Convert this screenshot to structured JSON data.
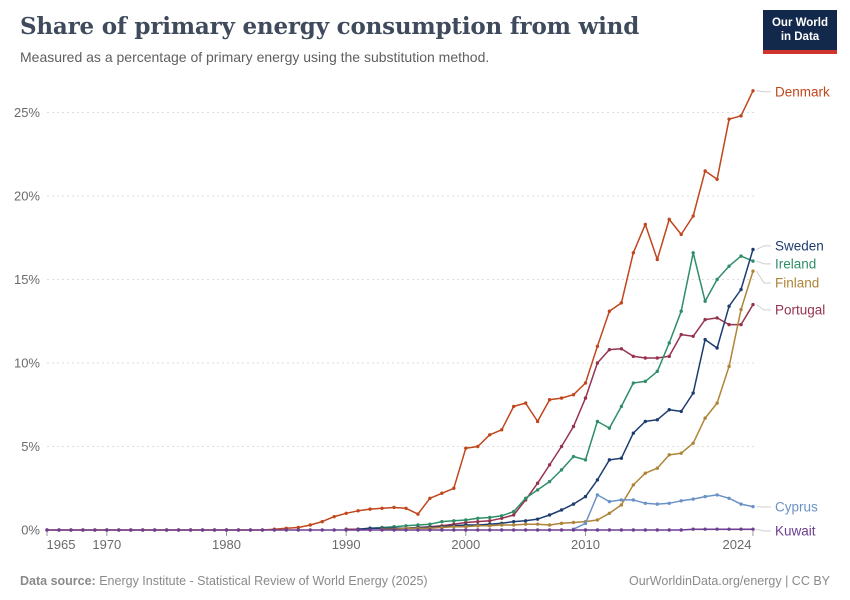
{
  "header": {
    "title": "Share of primary energy consumption from wind",
    "subtitle": "Measured as a percentage of primary energy using the substitution method.",
    "logo_line1": "Our World",
    "logo_line2": "in Data"
  },
  "footer": {
    "source_label": "Data source:",
    "source_text": " Energy Institute - Statistical Review of World Energy (2025)",
    "site": "OurWorldinData.org/energy",
    "separator": " | ",
    "license": "CC BY"
  },
  "chart_data": {
    "type": "line",
    "title": "Share of primary energy consumption from wind",
    "xlabel": "",
    "ylabel": "",
    "ylim": [
      0,
      26.5
    ],
    "xlim": [
      1965,
      2024
    ],
    "grid": "horizontal-dashed",
    "legend_position": "labels-right-of-lines",
    "y_ticks": [
      {
        "value": 0,
        "label": "0%"
      },
      {
        "value": 5,
        "label": "5%"
      },
      {
        "value": 10,
        "label": "10%"
      },
      {
        "value": 15,
        "label": "15%"
      },
      {
        "value": 20,
        "label": "20%"
      },
      {
        "value": 25,
        "label": "25%"
      }
    ],
    "x_ticks": [
      {
        "year": 1965,
        "label": "1965"
      },
      {
        "year": 1970,
        "label": "1970"
      },
      {
        "year": 1980,
        "label": "1980"
      },
      {
        "year": 1990,
        "label": "1990"
      },
      {
        "year": 2000,
        "label": "2000"
      },
      {
        "year": 2010,
        "label": "2010"
      },
      {
        "year": 2024,
        "label": "2024"
      }
    ],
    "series": [
      {
        "name": "Denmark",
        "color": "#c0461d",
        "start_year": 1965,
        "values": [
          0,
          0,
          0,
          0,
          0,
          0,
          0,
          0,
          0,
          0,
          0,
          0,
          0,
          0,
          0,
          0,
          0,
          0,
          0,
          0.05,
          0.1,
          0.15,
          0.3,
          0.5,
          0.8,
          1.0,
          1.15,
          1.25,
          1.3,
          1.35,
          1.3,
          0.95,
          1.9,
          2.2,
          2.5,
          4.9,
          5.0,
          5.7,
          6.0,
          7.4,
          7.6,
          6.5,
          7.8,
          7.9,
          8.1,
          8.8,
          11.0,
          13.1,
          13.6,
          16.6,
          18.3,
          16.2,
          18.6,
          17.7,
          18.8,
          21.5,
          21.0,
          24.6,
          24.8,
          26.3
        ]
      },
      {
        "name": "Sweden",
        "color": "#1d3d70",
        "start_year": 1991,
        "values": [
          0.05,
          0.1,
          0.1,
          0.1,
          0.1,
          0.15,
          0.15,
          0.2,
          0.25,
          0.3,
          0.3,
          0.35,
          0.4,
          0.5,
          0.55,
          0.65,
          0.9,
          1.2,
          1.55,
          2.0,
          3.0,
          4.2,
          4.3,
          5.8,
          6.5,
          6.6,
          7.2,
          7.1,
          8.2,
          11.4,
          10.9,
          13.4,
          14.4,
          16.8
        ]
      },
      {
        "name": "Ireland",
        "color": "#2f8e68",
        "start_year": 1992,
        "values": [
          0.1,
          0.15,
          0.2,
          0.25,
          0.3,
          0.35,
          0.5,
          0.55,
          0.6,
          0.7,
          0.75,
          0.85,
          1.1,
          1.9,
          2.4,
          2.9,
          3.6,
          4.4,
          4.2,
          6.5,
          6.1,
          7.4,
          8.8,
          8.9,
          9.5,
          11.2,
          13.1,
          16.6,
          13.7,
          15.0,
          15.8,
          16.4,
          16.1
        ]
      },
      {
        "name": "Finland",
        "color": "#ae8538",
        "start_year": 1993,
        "values": [
          0.05,
          0.05,
          0.1,
          0.1,
          0.1,
          0.15,
          0.2,
          0.2,
          0.25,
          0.25,
          0.3,
          0.3,
          0.35,
          0.35,
          0.3,
          0.4,
          0.45,
          0.5,
          0.6,
          1.0,
          1.5,
          2.7,
          3.4,
          3.7,
          4.5,
          4.6,
          5.2,
          6.7,
          7.6,
          9.8,
          13.2,
          15.5
        ]
      },
      {
        "name": "Portugal",
        "color": "#95334f",
        "start_year": 1990,
        "values": [
          0.05,
          0.05,
          0.1,
          0.1,
          0.1,
          0.1,
          0.15,
          0.2,
          0.25,
          0.35,
          0.45,
          0.5,
          0.55,
          0.7,
          0.9,
          1.8,
          2.8,
          3.9,
          5.0,
          6.2,
          7.9,
          10.0,
          10.8,
          10.85,
          10.4,
          10.3,
          10.3,
          10.4,
          11.7,
          11.6,
          12.6,
          12.7,
          12.3,
          12.3,
          13.5
        ]
      },
      {
        "name": "Cyprus",
        "color": "#6b92c6",
        "start_year": 2009,
        "values": [
          0.05,
          0.4,
          2.1,
          1.7,
          1.8,
          1.8,
          1.6,
          1.55,
          1.6,
          1.75,
          1.85,
          2.0,
          2.1,
          1.9,
          1.55,
          1.4
        ]
      },
      {
        "name": "Kuwait",
        "color": "#6d3e91",
        "start_year": 1965,
        "values": [
          0,
          0,
          0,
          0,
          0,
          0,
          0,
          0,
          0,
          0,
          0,
          0,
          0,
          0,
          0,
          0,
          0,
          0,
          0,
          0,
          0,
          0,
          0,
          0,
          0,
          0,
          0,
          0,
          0,
          0,
          0,
          0,
          0,
          0,
          0,
          0,
          0,
          0,
          0,
          0,
          0,
          0,
          0,
          0,
          0,
          0,
          0,
          0,
          0,
          0,
          0,
          0,
          0,
          0,
          0.05,
          0.05,
          0.05,
          0.05,
          0.05,
          0.05
        ]
      }
    ]
  }
}
